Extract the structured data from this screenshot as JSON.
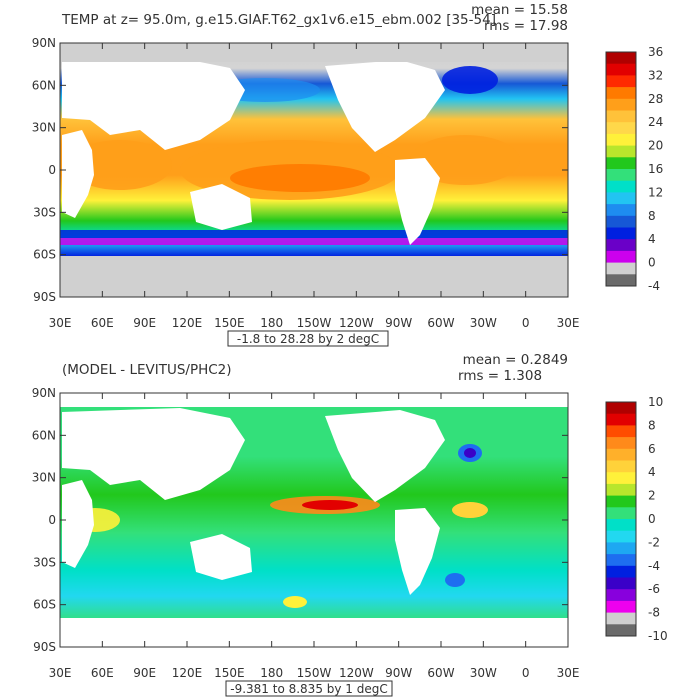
{
  "top_panel": {
    "title": "TEMP at z=  95.0m, g.e15.GIAF.T62_gx1v6.e15_ebm.002 [35-54]",
    "mean_text": "mean = 15.58",
    "rms_text": "rms = 17.98",
    "range_text": "-1.8 to 28.28 by 2 degC",
    "colorbar_labels": [
      "36",
      "32",
      "28",
      "24",
      "20",
      "16",
      "12",
      "8",
      "4",
      "0",
      "-4"
    ],
    "colorbar_colors": [
      "#b00000",
      "#e20000",
      "#ff2a00",
      "#ff7a00",
      "#ff9f1a",
      "#ffc23a",
      "#ffd84a",
      "#fff13a",
      "#b8e62c",
      "#22c81c",
      "#33e07a",
      "#00e0c8",
      "#22c4f2",
      "#1e8cf0",
      "#1658d6",
      "#0020e0",
      "#6a00c8",
      "#cc00ee",
      "#d0d0d0",
      "#6a6a6a"
    ],
    "lat_labels": [
      "90N",
      "60N",
      "30N",
      "0",
      "30S",
      "60S",
      "90S"
    ],
    "lon_labels": [
      "30E",
      "60E",
      "90E",
      "120E",
      "150E",
      "180",
      "150W",
      "120W",
      "90W",
      "60W",
      "30W",
      "0",
      "30E"
    ]
  },
  "bottom_panel": {
    "title": "(MODEL - LEVITUS/PHC2)",
    "mean_text": "mean = 0.2849",
    "rms_text": "rms = 1.308",
    "range_text": "-9.381 to 8.835 by 1 degC",
    "colorbar_labels": [
      "10",
      "8",
      "6",
      "4",
      "2",
      "0",
      "-2",
      "-4",
      "-6",
      "-8",
      "-10"
    ],
    "colorbar_colors": [
      "#b00000",
      "#e20000",
      "#ff4d00",
      "#ff8a1a",
      "#ffb02a",
      "#ffd23a",
      "#fff13a",
      "#b8e62c",
      "#22c81c",
      "#33e07a",
      "#00e0c8",
      "#22d8f0",
      "#1ea8f2",
      "#1e6ef0",
      "#0020e0",
      "#3a00c8",
      "#8800dd",
      "#ee00ee",
      "#cfcfcf",
      "#6a6a6a"
    ],
    "lat_labels": [
      "90N",
      "60N",
      "30N",
      "0",
      "30S",
      "60S",
      "90S"
    ],
    "lon_labels": [
      "30E",
      "60E",
      "90E",
      "120E",
      "150E",
      "180",
      "150W",
      "120W",
      "90W",
      "60W",
      "30W",
      "0",
      "30E"
    ]
  }
}
